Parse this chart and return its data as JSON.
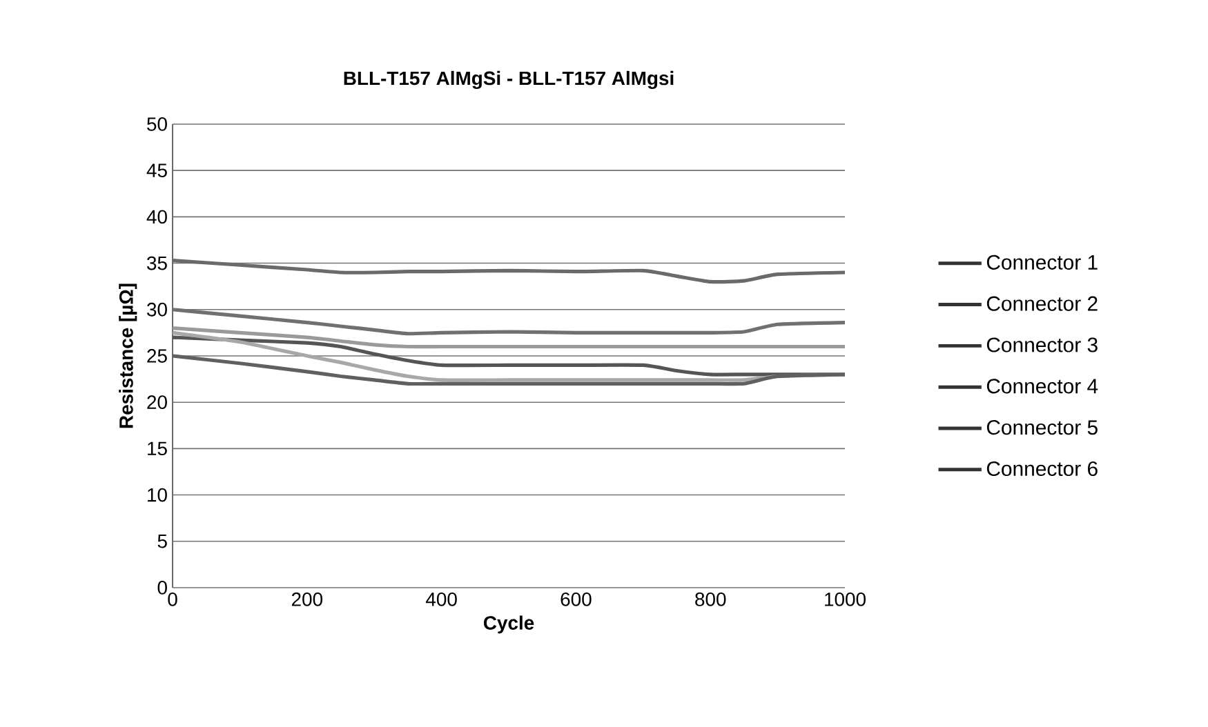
{
  "chart_data": {
    "type": "line",
    "title": "BLL-T157 AlMgSi - BLL-T157 AlMgsi",
    "xlabel": "Cycle",
    "ylabel": "Resistance [µΩ]",
    "x": [
      0,
      100,
      200,
      250,
      300,
      350,
      400,
      500,
      600,
      700,
      750,
      800,
      850,
      900,
      1000
    ],
    "xlim": [
      0,
      1000
    ],
    "xticks": [
      0,
      200,
      400,
      600,
      800,
      1000
    ],
    "ylim": [
      0,
      50
    ],
    "yticks": [
      0,
      5,
      10,
      15,
      20,
      25,
      30,
      35,
      40,
      45,
      50
    ],
    "grid": "y",
    "legend": "right",
    "line_style": "solid",
    "marker": "none",
    "series": [
      {
        "name": "Connector 1",
        "color": "#6a6a6a",
        "values": [
          35.3,
          34.8,
          34.3,
          34,
          34,
          34.1,
          34.1,
          34.2,
          34.1,
          34.2,
          33.6,
          33,
          33.1,
          33.8,
          34
        ]
      },
      {
        "name": "Connector 2",
        "color": "#707070",
        "values": [
          30,
          29.3,
          28.6,
          28.2,
          27.8,
          27.4,
          27.5,
          27.6,
          27.5,
          27.5,
          27.5,
          27.5,
          27.6,
          28.4,
          28.6
        ]
      },
      {
        "name": "Connector 3",
        "color": "#9a9a9a",
        "values": [
          28,
          27.5,
          27,
          26.6,
          26.2,
          26,
          26,
          26,
          26,
          26,
          26,
          26,
          26,
          26,
          26
        ]
      },
      {
        "name": "Connector 4",
        "color": "#555555",
        "values": [
          27,
          26.7,
          26.4,
          26,
          25.2,
          24.5,
          24,
          24,
          24,
          24,
          23.4,
          23,
          23,
          23,
          23
        ]
      },
      {
        "name": "Connector 5",
        "color": "#a8a8a8",
        "values": [
          27.5,
          26.5,
          25,
          24.3,
          23.5,
          22.8,
          22.4,
          22.4,
          22.4,
          22.4,
          22.4,
          22.4,
          22.4,
          22.8,
          23
        ]
      },
      {
        "name": "Connector 6",
        "color": "#606060",
        "values": [
          25,
          24.2,
          23.3,
          22.8,
          22.4,
          22,
          22,
          22,
          22,
          22,
          22,
          22,
          22,
          22.8,
          23
        ]
      }
    ]
  }
}
